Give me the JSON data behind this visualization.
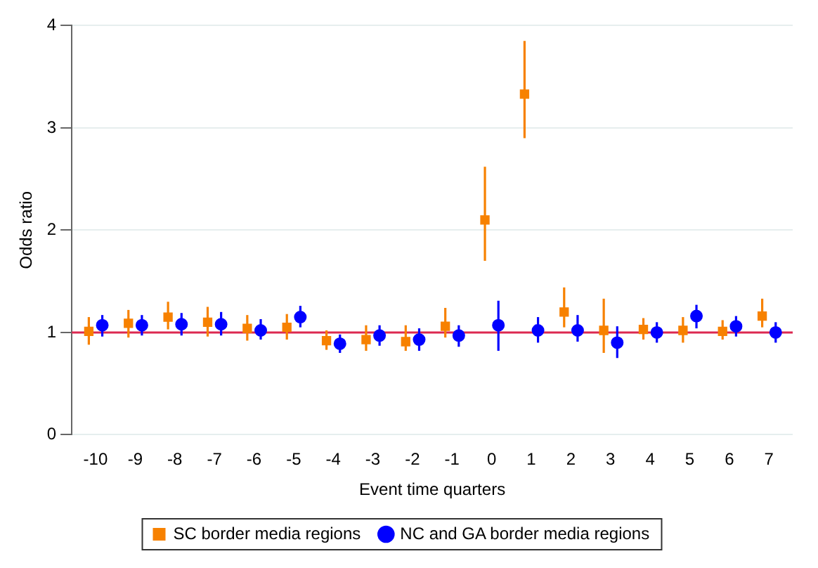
{
  "chart_data": {
    "type": "scatter",
    "xlabel": "Event time quarters",
    "ylabel": "Odds ratio",
    "categories": [
      "-10",
      "-9",
      "-8",
      "-7",
      "-6",
      "-5",
      "-4",
      "-3",
      "-2",
      "-1",
      "0",
      "1",
      "2",
      "3",
      "4",
      "5",
      "6",
      "7"
    ],
    "ylim": [
      0,
      4
    ],
    "yticks": [
      0,
      1,
      2,
      3,
      4
    ],
    "grid": "y",
    "legend": "bottom",
    "ref_lines": [
      {
        "axis": "y",
        "value": 1,
        "color": "#dc2850"
      }
    ],
    "series": [
      {
        "name": "SC border media regions",
        "color": "#f78100",
        "marker": "square",
        "values": [
          1.01,
          1.09,
          1.15,
          1.1,
          1.04,
          1.05,
          0.92,
          0.93,
          0.91,
          1.06,
          2.1,
          3.33,
          1.2,
          1.02,
          1.03,
          1.02,
          1.01,
          1.16
        ],
        "errors": [
          [
            0.88,
            1.15
          ],
          [
            0.95,
            1.22
          ],
          [
            1.03,
            1.3
          ],
          [
            0.96,
            1.25
          ],
          [
            0.92,
            1.17
          ],
          [
            0.93,
            1.18
          ],
          [
            0.83,
            1.02
          ],
          [
            0.82,
            1.07
          ],
          [
            0.82,
            1.07
          ],
          [
            0.95,
            1.24
          ],
          [
            1.7,
            2.62
          ],
          [
            2.9,
            3.85
          ],
          [
            1.05,
            1.44
          ],
          [
            0.8,
            1.33
          ],
          [
            0.93,
            1.14
          ],
          [
            0.9,
            1.15
          ],
          [
            0.93,
            1.12
          ],
          [
            1.05,
            1.33
          ]
        ]
      },
      {
        "name": "NC and GA border media regions",
        "color": "#0000ff",
        "marker": "circle",
        "values": [
          1.07,
          1.07,
          1.08,
          1.08,
          1.02,
          1.15,
          0.89,
          0.97,
          0.93,
          0.97,
          1.07,
          1.02,
          1.02,
          0.9,
          1.0,
          1.16,
          1.06,
          1.0
        ],
        "errors": [
          [
            0.96,
            1.17
          ],
          [
            0.97,
            1.17
          ],
          [
            0.97,
            1.19
          ],
          [
            0.97,
            1.2
          ],
          [
            0.93,
            1.13
          ],
          [
            1.05,
            1.26
          ],
          [
            0.8,
            0.98
          ],
          [
            0.87,
            1.07
          ],
          [
            0.82,
            1.04
          ],
          [
            0.86,
            1.07
          ],
          [
            0.82,
            1.31
          ],
          [
            0.9,
            1.15
          ],
          [
            0.91,
            1.17
          ],
          [
            0.75,
            1.06
          ],
          [
            0.9,
            1.1
          ],
          [
            1.04,
            1.27
          ],
          [
            0.96,
            1.16
          ],
          [
            0.9,
            1.1
          ]
        ]
      }
    ]
  }
}
